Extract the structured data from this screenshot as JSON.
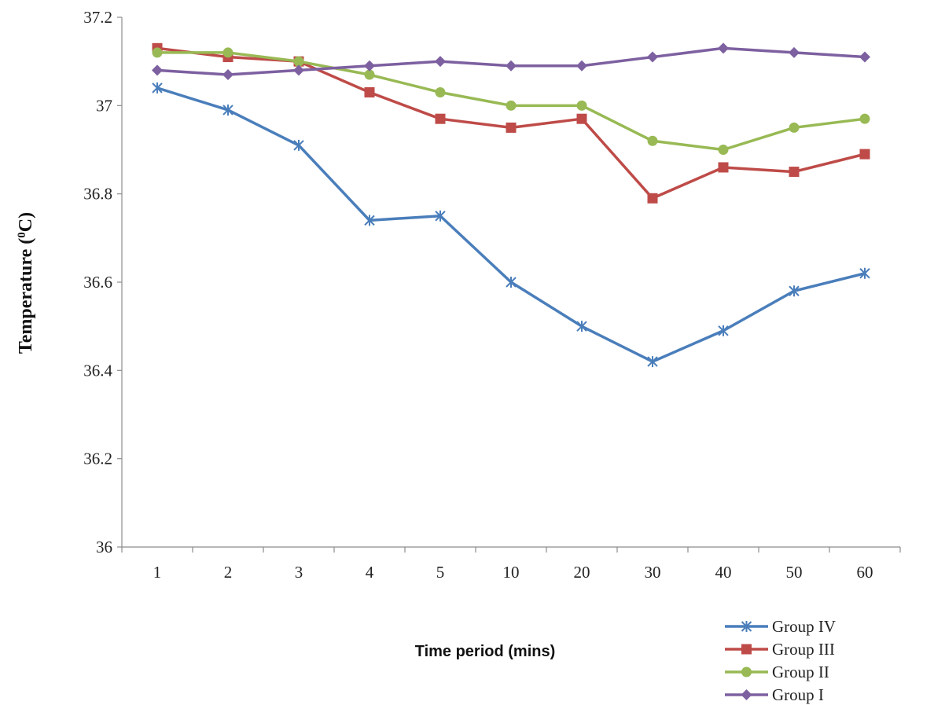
{
  "chart_data": {
    "type": "line",
    "categories": [
      "1",
      "2",
      "3",
      "4",
      "5",
      "10",
      "20",
      "30",
      "40",
      "50",
      "60"
    ],
    "xlabel": "Time period (mins)",
    "ylabel": "Temperature (",
    "ylabel_sup": "0",
    "ylabel_tail": "C)",
    "ylim": [
      36,
      37.2
    ],
    "yticks": [
      "36",
      "36.2",
      "36.4",
      "36.6",
      "36.8",
      "37",
      "37.2"
    ],
    "grid": false,
    "legend_position": "bottom-right",
    "series": [
      {
        "name": "Group IV",
        "marker": "star",
        "color": "#4a7ebb",
        "values": [
          37.04,
          36.99,
          36.91,
          36.74,
          36.75,
          36.6,
          36.5,
          36.42,
          36.49,
          36.58,
          36.62
        ]
      },
      {
        "name": "Group III",
        "marker": "square",
        "color": "#be4b48",
        "values": [
          37.13,
          37.11,
          37.1,
          37.03,
          36.97,
          36.95,
          36.97,
          36.79,
          36.86,
          36.85,
          36.89
        ]
      },
      {
        "name": "Group II",
        "marker": "circle",
        "color": "#98b954",
        "values": [
          37.12,
          37.12,
          37.1,
          37.07,
          37.03,
          37.0,
          37.0,
          36.92,
          36.9,
          36.95,
          36.97
        ]
      },
      {
        "name": "Group I",
        "marker": "diamond",
        "color": "#7d60a0",
        "values": [
          37.08,
          37.07,
          37.08,
          37.09,
          37.1,
          37.09,
          37.09,
          37.11,
          37.13,
          37.12,
          37.11
        ]
      }
    ]
  }
}
